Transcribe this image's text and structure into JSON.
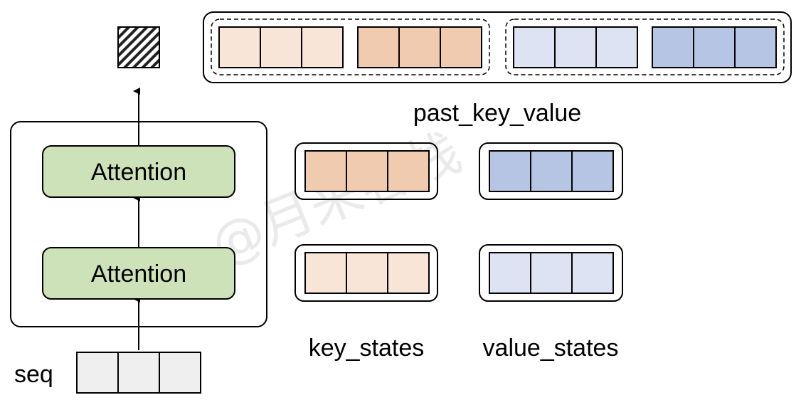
{
  "colors": {
    "key_past": "#f8e5d8",
    "key_new": "#f0cbb0",
    "value_past": "#dde3f2",
    "value_new": "#b6c5e4",
    "seq_fill": "#efefef",
    "attention_fill": "#cde2b8",
    "stroke": "#000000"
  },
  "model": {
    "layers": [
      {
        "label": "Attention"
      },
      {
        "label": "Attention"
      }
    ]
  },
  "seq": {
    "label": "seq",
    "cells": 3
  },
  "output_icon": "hatched-square-icon",
  "past_kv": {
    "label": "past_key_value",
    "groups": [
      {
        "name": "key-group",
        "blocks": [
          {
            "color": "key_past",
            "cells": 3
          },
          {
            "color": "key_new",
            "cells": 3
          }
        ]
      },
      {
        "name": "value-group",
        "blocks": [
          {
            "color": "value_past",
            "cells": 3
          },
          {
            "color": "value_new",
            "cells": 3
          }
        ]
      }
    ]
  },
  "key_states": {
    "label": "key_states",
    "blocks": [
      {
        "color": "key_new",
        "cells": 3
      },
      {
        "color": "key_past",
        "cells": 3
      }
    ]
  },
  "value_states": {
    "label": "value_states",
    "blocks": [
      {
        "color": "value_new",
        "cells": 3
      },
      {
        "color": "value_past",
        "cells": 3
      }
    ]
  },
  "watermark": "@月来客栈"
}
